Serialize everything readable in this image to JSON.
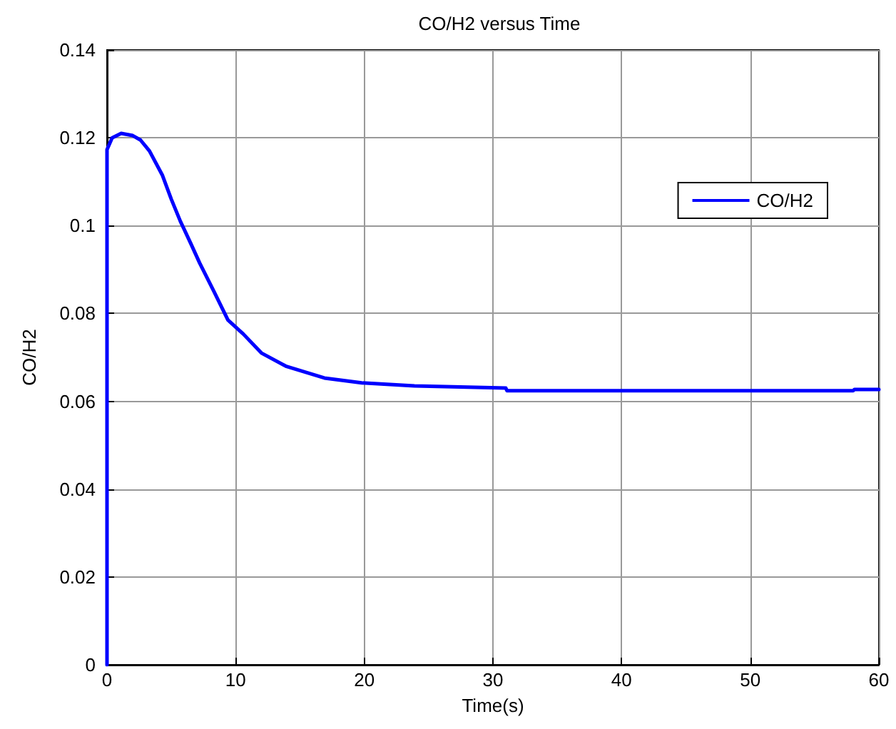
{
  "chart_data": {
    "type": "line",
    "title": "CO/H2 versus Time",
    "xlabel": "Time(s)",
    "ylabel": "CO/H2",
    "xlim": [
      0,
      60
    ],
    "xticks": [
      0,
      10,
      20,
      30,
      40,
      50,
      60
    ],
    "ylim": [
      0,
      0.14
    ],
    "yticks": [
      0,
      0.02,
      0.04,
      0.06,
      0.08,
      0.1,
      0.12,
      0.14
    ],
    "grid": true,
    "legend": "top right",
    "marker": "none",
    "line_style": "solid",
    "series": [
      {
        "name": "CO/H2",
        "color": "#0000ff",
        "x": [
          0,
          0,
          0.4,
          1.1,
          2.0,
          2.6,
          3.3,
          4.3,
          5.0,
          5.7,
          6.5,
          7.2,
          8.3,
          9.4,
          10.6,
          12,
          13.9,
          16.9,
          19.8,
          23.9,
          31,
          31.1,
          58,
          58.1,
          60
        ],
        "values": [
          0,
          0.1173,
          0.12,
          0.121,
          0.1205,
          0.1195,
          0.117,
          0.1115,
          0.106,
          0.101,
          0.096,
          0.0915,
          0.0851,
          0.0785,
          0.0753,
          0.071,
          0.068,
          0.0653,
          0.0642,
          0.0635,
          0.063,
          0.0624,
          0.0624,
          0.0627,
          0.0627
        ]
      }
    ]
  }
}
